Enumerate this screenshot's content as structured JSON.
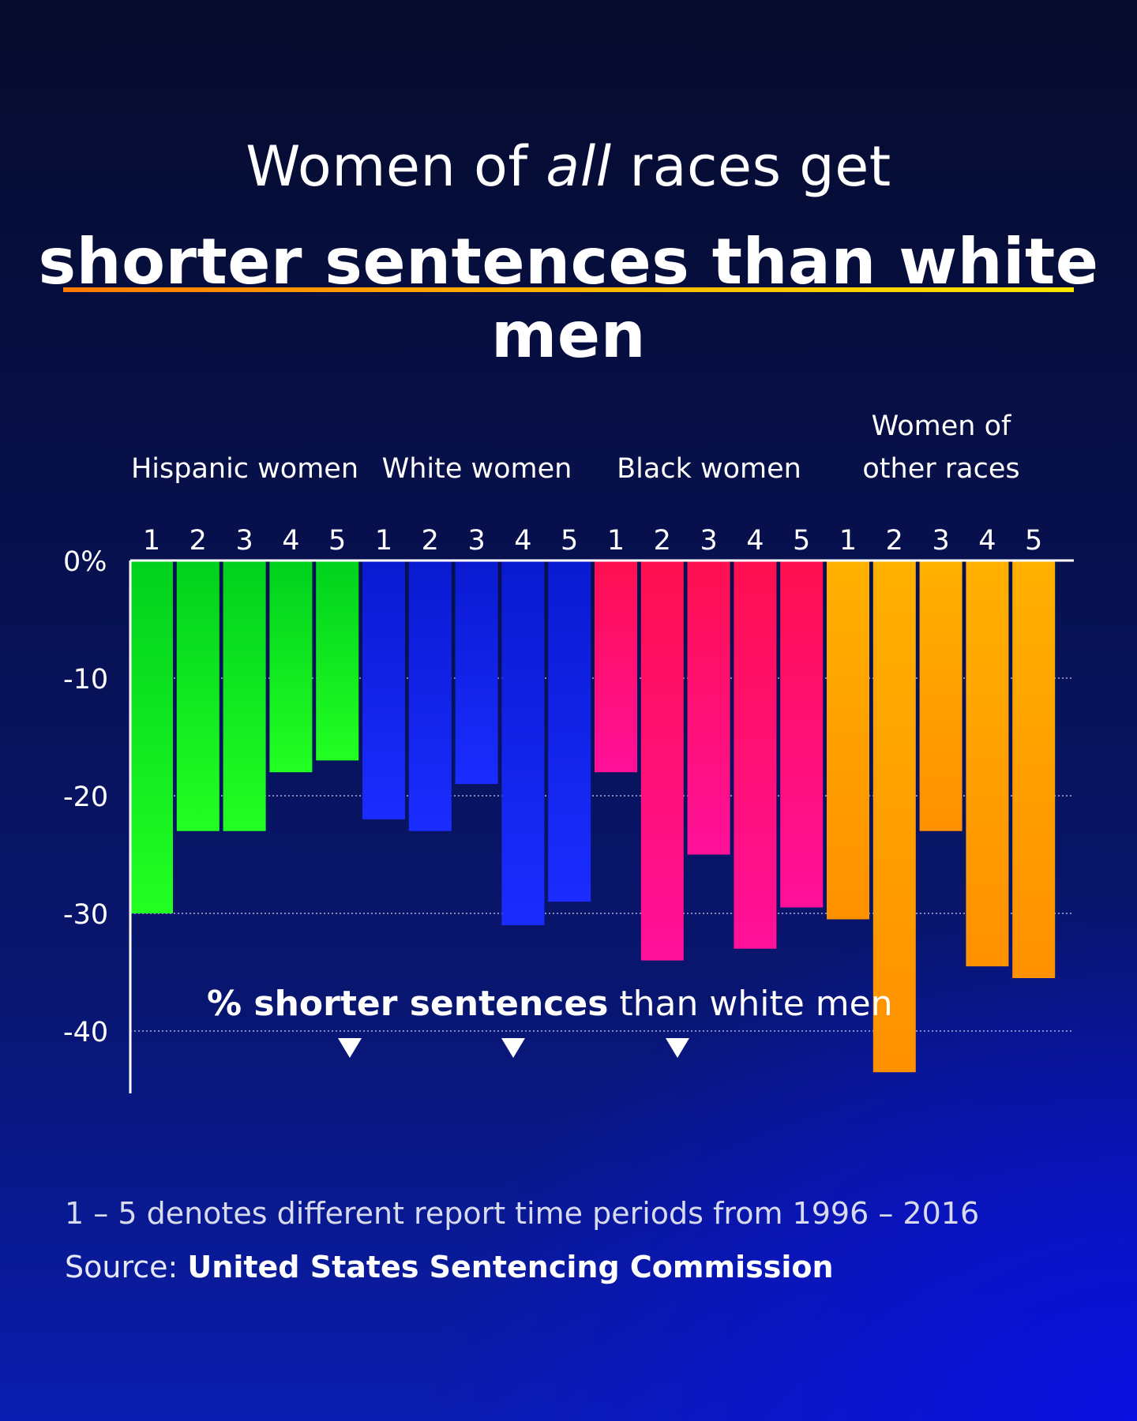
{
  "title": {
    "line1_prefix": "Women of ",
    "line1_emphasis": "all",
    "line1_suffix": " races get",
    "line2": "shorter sentences than white men"
  },
  "chart_data": {
    "type": "bar",
    "groups": [
      {
        "name": "Hispanic women",
        "color_top": "#00d11e",
        "color_bottom": "#22ff22",
        "values": [
          -30,
          -23,
          -23,
          -18,
          -17
        ]
      },
      {
        "name": "White women",
        "color_top": "#0a1ad0",
        "color_bottom": "#1a2cff",
        "values": [
          -22,
          -23,
          -19,
          -31,
          -29
        ]
      },
      {
        "name": "Black women",
        "color_top": "#ff1050",
        "color_bottom": "#ff1099",
        "values": [
          -18,
          -34,
          -25,
          -33,
          -29.5
        ]
      },
      {
        "name": "Women of other races",
        "name_lines": [
          "Women of",
          "other races"
        ],
        "color_top": "#ffb000",
        "color_bottom": "#ff9000",
        "values": [
          -30.5,
          -43.5,
          -23,
          -34.5,
          -35.5
        ]
      }
    ],
    "categories": [
      "1",
      "2",
      "3",
      "4",
      "5"
    ],
    "y_ticks": [
      {
        "value": 0,
        "label": "0%"
      },
      {
        "value": -10,
        "label": "-10"
      },
      {
        "value": -20,
        "label": "-20"
      },
      {
        "value": -30,
        "label": "-30"
      },
      {
        "value": -40,
        "label": "-40"
      }
    ],
    "ylim": [
      -45,
      0
    ],
    "annotation": {
      "bold": "% shorter sentences",
      "normal": " than white men"
    },
    "grid": "dotted"
  },
  "footer": {
    "note": "1 – 5 denotes different report time periods from 1996 – 2016",
    "source_label": "Source: ",
    "source_name": "United States Sentencing Commission"
  }
}
